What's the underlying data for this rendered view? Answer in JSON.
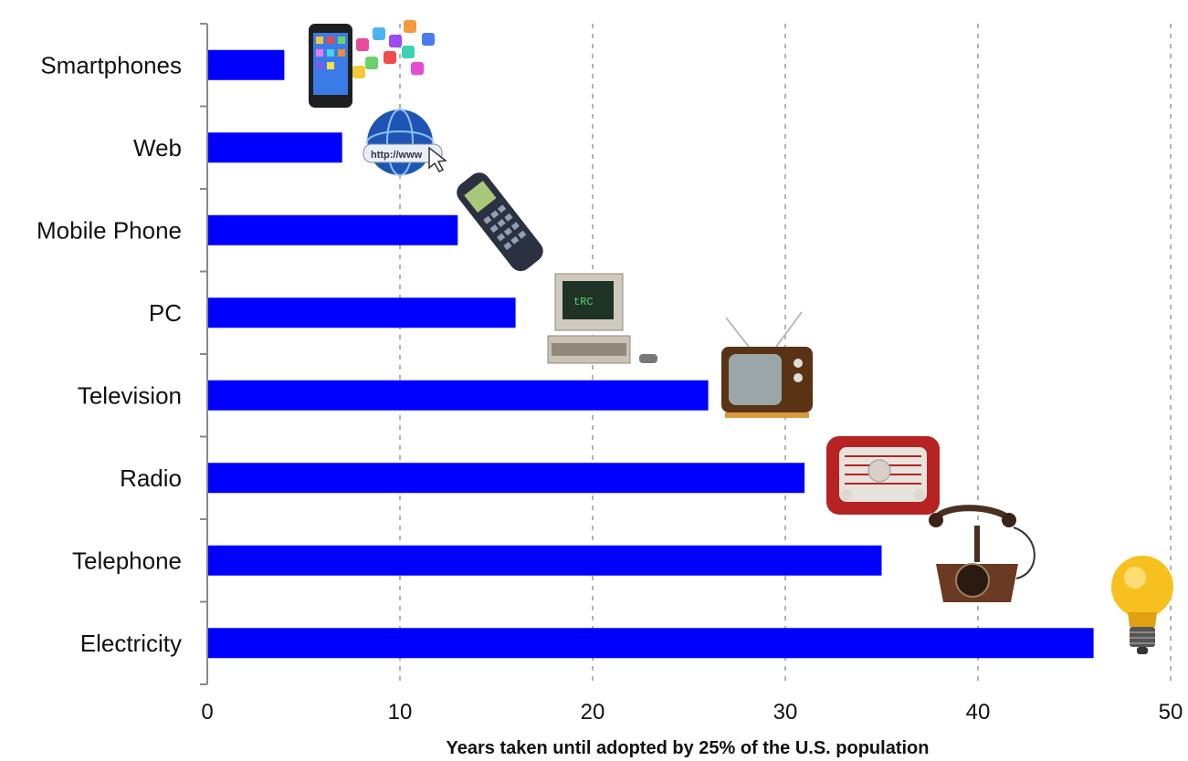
{
  "chart_data": {
    "type": "bar",
    "orientation": "horizontal",
    "categories": [
      "Smartphones",
      "Web",
      "Mobile Phone",
      "PC",
      "Television",
      "Radio",
      "Telephone",
      "Electricity"
    ],
    "values": [
      4,
      7,
      13,
      16,
      26,
      31,
      35,
      46
    ],
    "xlabel": "Years taken until adopted by 25% of the U.S. population",
    "ylabel": "",
    "xlim": [
      0,
      50
    ],
    "xticks": [
      0,
      10,
      20,
      30,
      40,
      50
    ],
    "grid": "vertical dashed",
    "colors": {
      "bar": "#0000ff",
      "grid": "#9a9a9a",
      "axis": "#8a8a8a"
    },
    "icons": [
      "smartphone-icon",
      "web-globe-icon",
      "mobile-phone-icon",
      "pc-icon",
      "television-icon",
      "radio-icon",
      "telephone-icon",
      "lightbulb-icon"
    ]
  }
}
